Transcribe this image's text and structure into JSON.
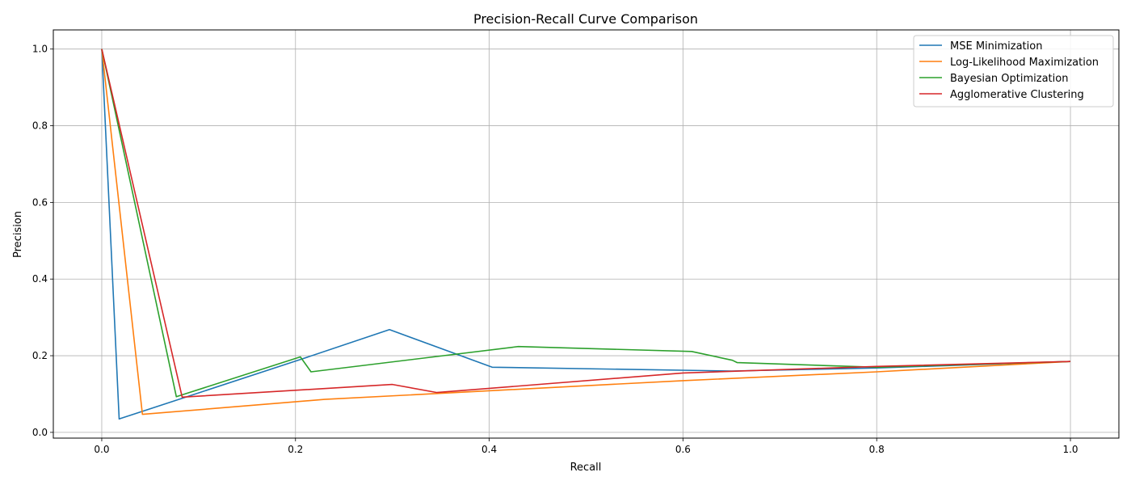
{
  "chart_data": {
    "type": "line",
    "title": "Precision-Recall Curve Comparison",
    "xlabel": "Recall",
    "ylabel": "Precision",
    "xlim": [
      -0.05,
      1.05
    ],
    "ylim": [
      -0.015,
      1.05
    ],
    "xticks": [
      0.0,
      0.2,
      0.4,
      0.6,
      0.8,
      1.0
    ],
    "xtick_labels": [
      "0.0",
      "0.2",
      "0.4",
      "0.6",
      "0.8",
      "1.0"
    ],
    "yticks": [
      0.0,
      0.2,
      0.4,
      0.6,
      0.8,
      1.0
    ],
    "ytick_labels": [
      "0.0",
      "0.2",
      "0.4",
      "0.6",
      "0.8",
      "1.0"
    ],
    "grid": true,
    "legend_position": "top-right",
    "series": [
      {
        "name": "MSE Minimization",
        "color": "#1f77b4",
        "x": [
          0.0,
          0.018,
          0.205,
          0.297,
          0.403,
          0.65,
          0.8,
          1.0
        ],
        "y": [
          1.0,
          0.035,
          0.19,
          0.268,
          0.17,
          0.16,
          0.168,
          0.185
        ]
      },
      {
        "name": "Log-Likelihood Maximization",
        "color": "#ff7f0e",
        "x": [
          0.0,
          0.042,
          0.23,
          0.6,
          0.8,
          1.0
        ],
        "y": [
          1.0,
          0.047,
          0.086,
          0.135,
          0.158,
          0.185
        ]
      },
      {
        "name": "Bayesian Optimization",
        "color": "#2ca02c",
        "x": [
          0.0,
          0.077,
          0.205,
          0.216,
          0.43,
          0.609,
          0.651,
          0.656,
          0.8,
          1.0
        ],
        "y": [
          1.0,
          0.093,
          0.197,
          0.158,
          0.224,
          0.211,
          0.188,
          0.182,
          0.17,
          0.185
        ]
      },
      {
        "name": "Agglomerative Clustering",
        "color": "#d62728",
        "x": [
          0.0,
          0.083,
          0.3,
          0.346,
          0.6,
          0.8,
          1.0
        ],
        "y": [
          1.0,
          0.092,
          0.125,
          0.104,
          0.155,
          0.172,
          0.185
        ]
      }
    ]
  }
}
